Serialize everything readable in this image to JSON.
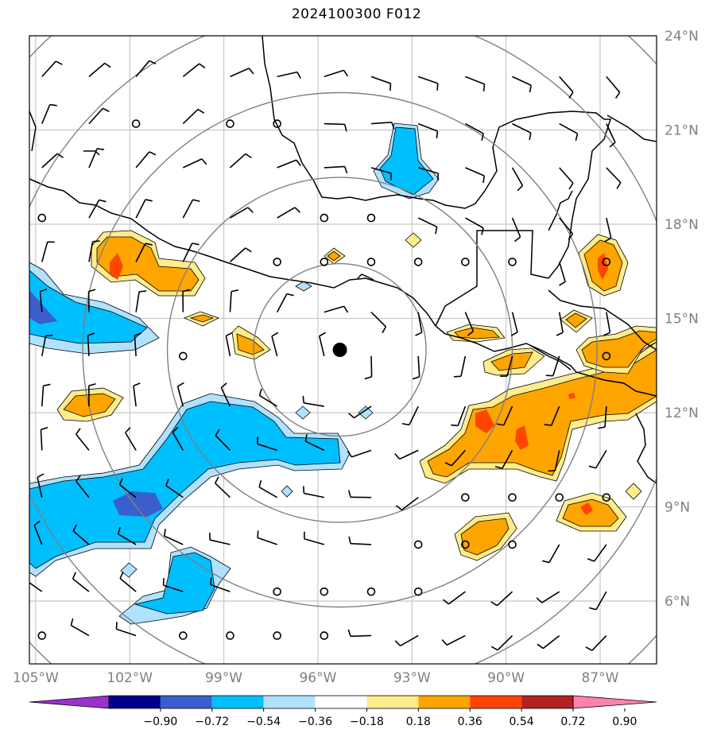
{
  "title": "2024100300 F012",
  "lat_labels": [
    {
      "lat": 24,
      "text": "24°N"
    },
    {
      "lat": 21,
      "text": "21°N"
    },
    {
      "lat": 18,
      "text": "18°N"
    },
    {
      "lat": 15,
      "text": "15°N"
    },
    {
      "lat": 12,
      "text": "12°N"
    },
    {
      "lat": 9,
      "text": "9°N"
    },
    {
      "lat": 6,
      "text": "6°N"
    }
  ],
  "lon_labels": [
    {
      "lon": -105,
      "text": "105°W"
    },
    {
      "lon": -102,
      "text": "102°W"
    },
    {
      "lon": -99,
      "text": "99°W"
    },
    {
      "lon": -96,
      "text": "96°W"
    },
    {
      "lon": -93,
      "text": "93°W"
    },
    {
      "lon": -90,
      "text": "90°W"
    },
    {
      "lon": -87,
      "text": "87°W"
    }
  ],
  "extent": {
    "lon_min": -105.2,
    "lon_max": -85.2,
    "lat_min": 4.0,
    "lat_max": 24.0
  },
  "center": {
    "lon": -95.3,
    "lat": 14.0
  },
  "range_rings_deg": [
    2.75,
    5.5,
    8.2,
    10.9,
    13.6
  ],
  "colorbar": {
    "bins": [
      "#9932cc",
      "#00008b",
      "#3a5fcd",
      "#00bfff",
      "#b0e2ff",
      "#ffffff",
      "#ffec8b",
      "#ffa500",
      "#ff4500",
      "#b22222",
      "#ff82ab"
    ],
    "tick_labels": [
      "−0.90",
      "−0.72",
      "−0.54",
      "−0.36",
      "−0.18",
      "0.18",
      "0.36",
      "0.54",
      "0.72",
      "0.90"
    ]
  },
  "colors": {
    "neg_light": "#b0e2ff",
    "neg_mid": "#00bfff",
    "neg_dark": "#3a5fcd",
    "pos_light": "#ffec8b",
    "pos_mid": "#ffa500",
    "pos_dark": "#ff4500"
  }
}
